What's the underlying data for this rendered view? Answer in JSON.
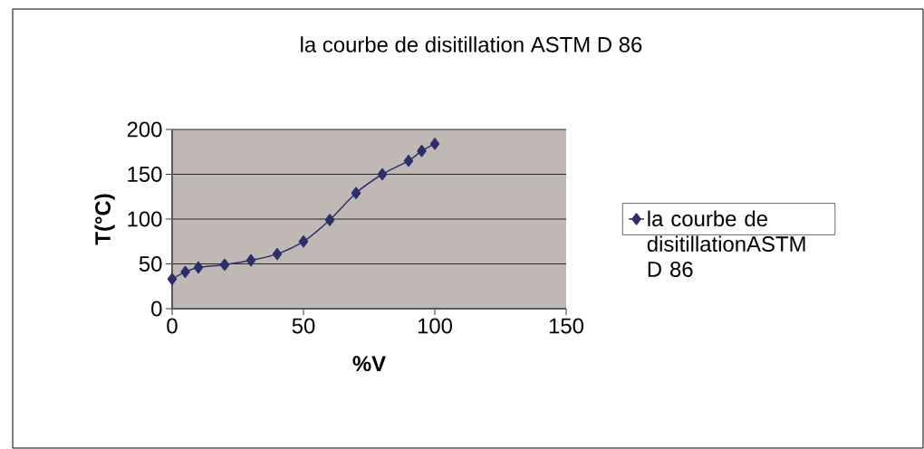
{
  "chart_data": {
    "type": "line",
    "title": "la courbe de  disitillation ASTM D 86",
    "xlabel": "%V",
    "ylabel": "T(°C)",
    "x": [
      0,
      5,
      10,
      20,
      30,
      40,
      50,
      60,
      70,
      80,
      90,
      95,
      100
    ],
    "series": [
      {
        "name": "la courbe de disitillationASTM D 86",
        "color": "#2e2e6b",
        "values": [
          33,
          41,
          46,
          49,
          54,
          61,
          75,
          99,
          129,
          150,
          165,
          176,
          184
        ]
      }
    ],
    "xlim": [
      0,
      150
    ],
    "ylim": [
      0,
      200
    ],
    "xticks": [
      0,
      50,
      100,
      150
    ],
    "yticks": [
      0,
      50,
      100,
      150,
      200
    ],
    "grid": "y",
    "legend": "right",
    "marker": "diamond",
    "line_style": "solid"
  }
}
